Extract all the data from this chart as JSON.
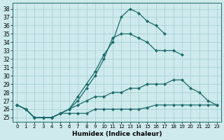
{
  "xlabel": "Humidex (Indice chaleur)",
  "background_color": "#ceeaec",
  "grid_color": "#aed4d8",
  "line_color": "#1a6b6b",
  "xlim": [
    -0.5,
    23.5
  ],
  "ylim": [
    24.5,
    38.7
  ],
  "yticks": [
    25,
    26,
    27,
    28,
    29,
    30,
    31,
    32,
    33,
    34,
    35,
    36,
    37,
    38
  ],
  "xticks": [
    0,
    1,
    2,
    3,
    4,
    5,
    6,
    7,
    8,
    9,
    10,
    11,
    12,
    13,
    14,
    15,
    16,
    17,
    18,
    19,
    20,
    21,
    22,
    23
  ],
  "series": [
    [
      26.5,
      26.0,
      25.0,
      25.0,
      25.0,
      25.5,
      26.0,
      27.5,
      29.0,
      30.5,
      32.5,
      34.0,
      37.0,
      38.0,
      37.5,
      36.5,
      36.0,
      35.0
    ],
    [
      26.5,
      26.0,
      25.0,
      25.0,
      25.0,
      25.5,
      26.0,
      27.0,
      28.5,
      30.0,
      32.0,
      34.5,
      35.0,
      35.0,
      34.5,
      34.0,
      33.0,
      33.0,
      33.0,
      32.5
    ],
    [
      26.5,
      26.0,
      25.0,
      25.0,
      25.0,
      25.5,
      26.0,
      26.5,
      27.0,
      27.5,
      27.5,
      28.0,
      28.0,
      28.5,
      28.5,
      29.0,
      29.0,
      29.0,
      29.5,
      29.5,
      28.5,
      28.0,
      27.0,
      26.5
    ],
    [
      26.5,
      26.0,
      25.0,
      25.0,
      25.0,
      25.5,
      25.5,
      25.5,
      25.5,
      26.0,
      26.0,
      26.0,
      26.0,
      26.0,
      26.0,
      26.2,
      26.5,
      26.5,
      26.5,
      26.5,
      26.5,
      26.5,
      26.5,
      26.5
    ]
  ]
}
